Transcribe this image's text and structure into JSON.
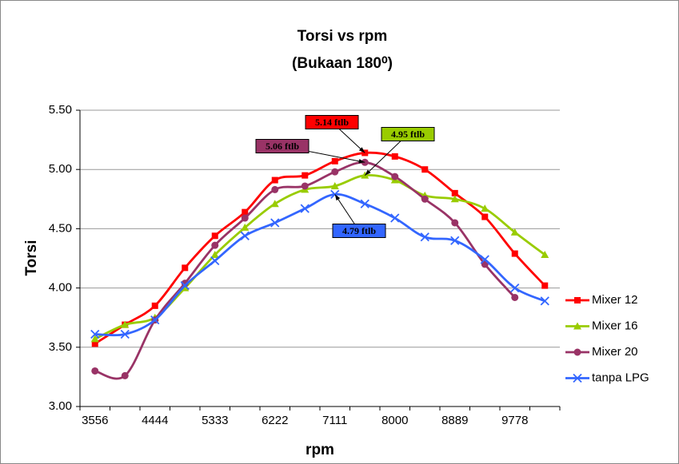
{
  "chart_data": {
    "type": "line",
    "title": "Torsi vs rpm",
    "subtitle": "(Bukaan 180⁰)",
    "x_label": "rpm",
    "y_label": "Torsi",
    "categories": [
      "3556",
      null,
      "4444",
      null,
      "5333",
      null,
      "6222",
      null,
      "7111",
      null,
      "8000",
      null,
      "8889",
      null,
      "9778",
      null
    ],
    "ylim": [
      3.0,
      5.5
    ],
    "yticks": [
      {
        "value": 3.0,
        "label": "3.00"
      },
      {
        "value": 3.5,
        "label": "3.50"
      },
      {
        "value": 4.0,
        "label": "4.00"
      },
      {
        "value": 4.5,
        "label": "4.50"
      },
      {
        "value": 5.0,
        "label": "5.00"
      },
      {
        "value": 5.5,
        "label": "5.50"
      }
    ],
    "grid": true,
    "legend": "right",
    "series": [
      {
        "name": "Mixer 12",
        "color": "#ff0000",
        "marker": "square",
        "values": [
          3.53,
          3.69,
          3.85,
          4.17,
          4.44,
          4.64,
          4.91,
          4.95,
          5.07,
          5.14,
          5.11,
          5.0,
          4.8,
          4.6,
          4.29,
          4.02
        ]
      },
      {
        "name": "Mixer 16",
        "color": "#99cc00",
        "marker": "triangle",
        "values": [
          3.57,
          3.69,
          3.75,
          4.0,
          4.28,
          4.51,
          4.71,
          4.83,
          4.86,
          4.95,
          4.91,
          4.78,
          4.75,
          4.67,
          4.47,
          4.28
        ]
      },
      {
        "name": "Mixer 20",
        "color": "#993366",
        "marker": "circle",
        "values": [
          3.3,
          3.26,
          3.73,
          4.04,
          4.36,
          4.59,
          4.83,
          4.86,
          4.98,
          5.06,
          4.94,
          4.75,
          4.55,
          4.2,
          3.92,
          null
        ]
      },
      {
        "name": "tanpa LPG",
        "color": "#3366ff",
        "marker": "x",
        "values": [
          3.61,
          3.61,
          3.73,
          4.02,
          4.23,
          4.44,
          4.55,
          4.67,
          4.79,
          4.71,
          4.59,
          4.43,
          4.4,
          4.24,
          4.0,
          3.89
        ]
      }
    ],
    "annotations": [
      "5.14 ftlb",
      "4.95 ftlb",
      "5.06 ftlb",
      "4.79 ftlb"
    ]
  }
}
